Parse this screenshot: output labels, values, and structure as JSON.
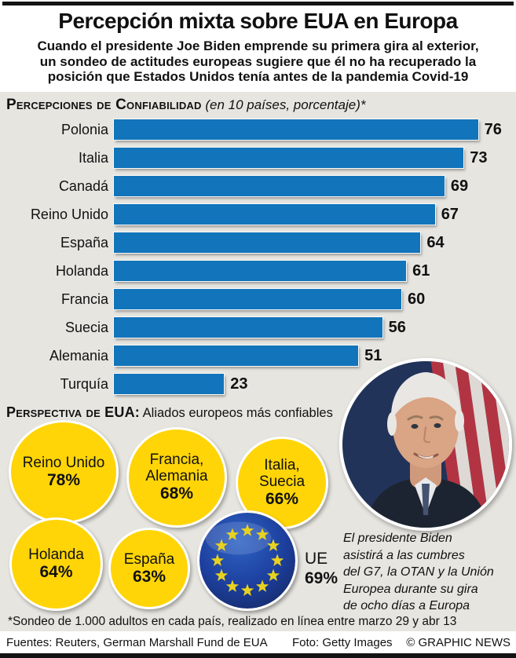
{
  "header": {
    "title": "Percepción mixta sobre EUA en Europa",
    "subtitle_lines": [
      "Cuando el presidente Joe Biden emprende su primera gira al exterior,",
      "un sondeo de actitudes europeas sugiere que él no ha recuperado la",
      "posición que Estados Unidos tenía antes de la pandemia Covid-19"
    ]
  },
  "chart_data": [
    {
      "type": "bar",
      "orientation": "horizontal",
      "title": "Percepciones de Confiabilidad",
      "subtitle": "(en 10 países, porcentaje)*",
      "categories": [
        "Polonia",
        "Italia",
        "Canadá",
        "Reino Unido",
        "España",
        "Holanda",
        "Francia",
        "Suecia",
        "Alemania",
        "Turquía"
      ],
      "values": [
        76,
        73,
        69,
        67,
        64,
        61,
        60,
        56,
        51,
        23
      ],
      "xlim": [
        0,
        80
      ],
      "grid": false,
      "bar_color": "#1274ba",
      "value_labels": "end-of-bar"
    },
    {
      "type": "bubble",
      "title": "Perspectiva de EUA: Aliados europeos más confiables",
      "categories": [
        "Reino Unido",
        "Francia, Alemania",
        "Italia, Suecia",
        "Holanda",
        "España",
        "UE"
      ],
      "values": [
        78,
        68,
        66,
        64,
        63,
        69
      ],
      "bubble_color": "#ffd507",
      "eu_bubble_style": "eu-flag"
    }
  ],
  "perspective": {
    "heading": "Perspectiva de EUA:",
    "subheading": "Aliados europeos más confiables",
    "bubbles": [
      {
        "label": "Reino Unido",
        "value": "78%"
      },
      {
        "label": "Francia, Alemania",
        "value": "68%"
      },
      {
        "label": "Italia, Suecia",
        "value": "66%"
      },
      {
        "label": "Holanda",
        "value": "64%"
      },
      {
        "label": "España",
        "value": "63%"
      }
    ],
    "eu": {
      "label": "UE",
      "value": "69%"
    }
  },
  "annotation": {
    "lines": [
      "El presidente Biden",
      "asistirá a las cumbres",
      "del G7, la OTAN y la Unión",
      "Europea durante su gira",
      "de ocho días a Europa"
    ]
  },
  "footnote": "*Sondeo de 1.000 adultos en cada país, realizado en línea entre marzo 29 y abr 13",
  "footer": {
    "sources": "Fuentes: Reuters, German Marshall Fund de EUA",
    "photo_credit": "Foto: Getty Images",
    "copyright": "© GRAPHIC NEWS"
  },
  "colors": {
    "bar": "#1274ba",
    "bubble": "#ffd507",
    "eu_blue": "#1d3f9e",
    "eu_star": "#e9d21f",
    "panel_bg": "#e6e5e0"
  }
}
